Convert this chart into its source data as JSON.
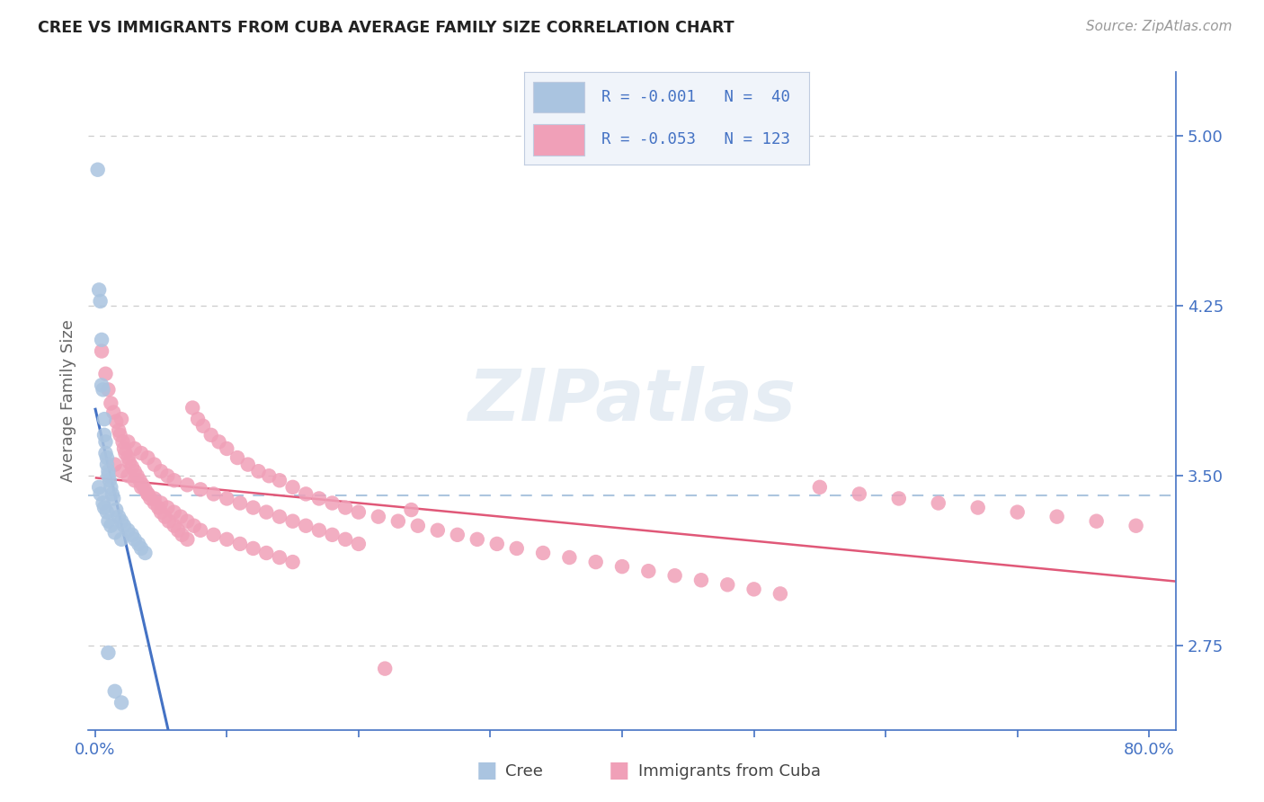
{
  "title": "CREE VS IMMIGRANTS FROM CUBA AVERAGE FAMILY SIZE CORRELATION CHART",
  "source": "Source: ZipAtlas.com",
  "ylabel": "Average Family Size",
  "cree_color": "#aac4e0",
  "cuba_color": "#f0a0b8",
  "trendline_cree_color": "#4472c4",
  "trendline_cuba_color": "#e05878",
  "dashed_line_color": "#99b8d8",
  "grid_color": "#cccccc",
  "axis_color": "#4472c4",
  "watermark_text": "ZIPatlas",
  "watermark_color": "#c8d8e8",
  "legend_bg": "#f0f4fa",
  "legend_border": "#c0cce0",
  "yticks": [
    2.75,
    3.5,
    4.25,
    5.0
  ],
  "ylim": [
    2.38,
    5.28
  ],
  "xlim": [
    0.0,
    0.82
  ],
  "xtick_positions": [
    0.0,
    0.1,
    0.2,
    0.3,
    0.4,
    0.5,
    0.6,
    0.7,
    0.8
  ],
  "xtick_labels": [
    "0.0%",
    "",
    "",
    "",
    "",
    "",
    "",
    "",
    "80.0%"
  ],
  "cree_x": [
    0.002,
    0.003,
    0.004,
    0.005,
    0.005,
    0.006,
    0.007,
    0.007,
    0.008,
    0.008,
    0.009,
    0.009,
    0.01,
    0.01,
    0.011,
    0.012,
    0.013,
    0.014,
    0.016,
    0.018,
    0.02,
    0.022,
    0.025,
    0.028,
    0.03,
    0.033,
    0.035,
    0.038,
    0.003,
    0.004,
    0.006,
    0.007,
    0.009,
    0.01,
    0.012,
    0.015,
    0.02,
    0.01,
    0.015,
    0.02
  ],
  "cree_y": [
    4.85,
    4.32,
    4.27,
    4.1,
    3.9,
    3.88,
    3.75,
    3.68,
    3.65,
    3.6,
    3.58,
    3.55,
    3.52,
    3.5,
    3.48,
    3.45,
    3.42,
    3.4,
    3.35,
    3.32,
    3.3,
    3.28,
    3.26,
    3.24,
    3.22,
    3.2,
    3.18,
    3.16,
    3.45,
    3.42,
    3.38,
    3.36,
    3.34,
    3.3,
    3.28,
    3.25,
    3.22,
    2.72,
    2.55,
    2.5
  ],
  "cuba_x": [
    0.005,
    0.008,
    0.01,
    0.012,
    0.014,
    0.016,
    0.018,
    0.019,
    0.02,
    0.021,
    0.022,
    0.023,
    0.025,
    0.026,
    0.028,
    0.03,
    0.032,
    0.034,
    0.036,
    0.038,
    0.04,
    0.042,
    0.045,
    0.048,
    0.05,
    0.053,
    0.056,
    0.06,
    0.063,
    0.066,
    0.07,
    0.074,
    0.078,
    0.082,
    0.088,
    0.094,
    0.1,
    0.108,
    0.116,
    0.124,
    0.132,
    0.14,
    0.15,
    0.16,
    0.17,
    0.18,
    0.19,
    0.2,
    0.215,
    0.23,
    0.245,
    0.26,
    0.275,
    0.29,
    0.305,
    0.32,
    0.34,
    0.36,
    0.38,
    0.4,
    0.42,
    0.44,
    0.46,
    0.48,
    0.5,
    0.52,
    0.55,
    0.58,
    0.61,
    0.64,
    0.67,
    0.7,
    0.73,
    0.76,
    0.79,
    0.015,
    0.02,
    0.025,
    0.03,
    0.035,
    0.04,
    0.045,
    0.05,
    0.055,
    0.06,
    0.065,
    0.07,
    0.075,
    0.08,
    0.09,
    0.1,
    0.11,
    0.12,
    0.13,
    0.14,
    0.15,
    0.025,
    0.03,
    0.035,
    0.04,
    0.045,
    0.05,
    0.055,
    0.06,
    0.07,
    0.08,
    0.09,
    0.1,
    0.11,
    0.12,
    0.13,
    0.14,
    0.15,
    0.16,
    0.17,
    0.18,
    0.19,
    0.2,
    0.22,
    0.24
  ],
  "cuba_y": [
    4.05,
    3.95,
    3.88,
    3.82,
    3.78,
    3.74,
    3.7,
    3.68,
    3.75,
    3.65,
    3.62,
    3.6,
    3.58,
    3.56,
    3.54,
    3.52,
    3.5,
    3.48,
    3.46,
    3.44,
    3.42,
    3.4,
    3.38,
    3.36,
    3.34,
    3.32,
    3.3,
    3.28,
    3.26,
    3.24,
    3.22,
    3.8,
    3.75,
    3.72,
    3.68,
    3.65,
    3.62,
    3.58,
    3.55,
    3.52,
    3.5,
    3.48,
    3.45,
    3.42,
    3.4,
    3.38,
    3.36,
    3.34,
    3.32,
    3.3,
    3.28,
    3.26,
    3.24,
    3.22,
    3.2,
    3.18,
    3.16,
    3.14,
    3.12,
    3.1,
    3.08,
    3.06,
    3.04,
    3.02,
    3.0,
    2.98,
    3.45,
    3.42,
    3.4,
    3.38,
    3.36,
    3.34,
    3.32,
    3.3,
    3.28,
    3.55,
    3.52,
    3.5,
    3.48,
    3.45,
    3.42,
    3.4,
    3.38,
    3.36,
    3.34,
    3.32,
    3.3,
    3.28,
    3.26,
    3.24,
    3.22,
    3.2,
    3.18,
    3.16,
    3.14,
    3.12,
    3.65,
    3.62,
    3.6,
    3.58,
    3.55,
    3.52,
    3.5,
    3.48,
    3.46,
    3.44,
    3.42,
    3.4,
    3.38,
    3.36,
    3.34,
    3.32,
    3.3,
    3.28,
    3.26,
    3.24,
    3.22,
    3.2,
    2.65,
    3.35
  ]
}
